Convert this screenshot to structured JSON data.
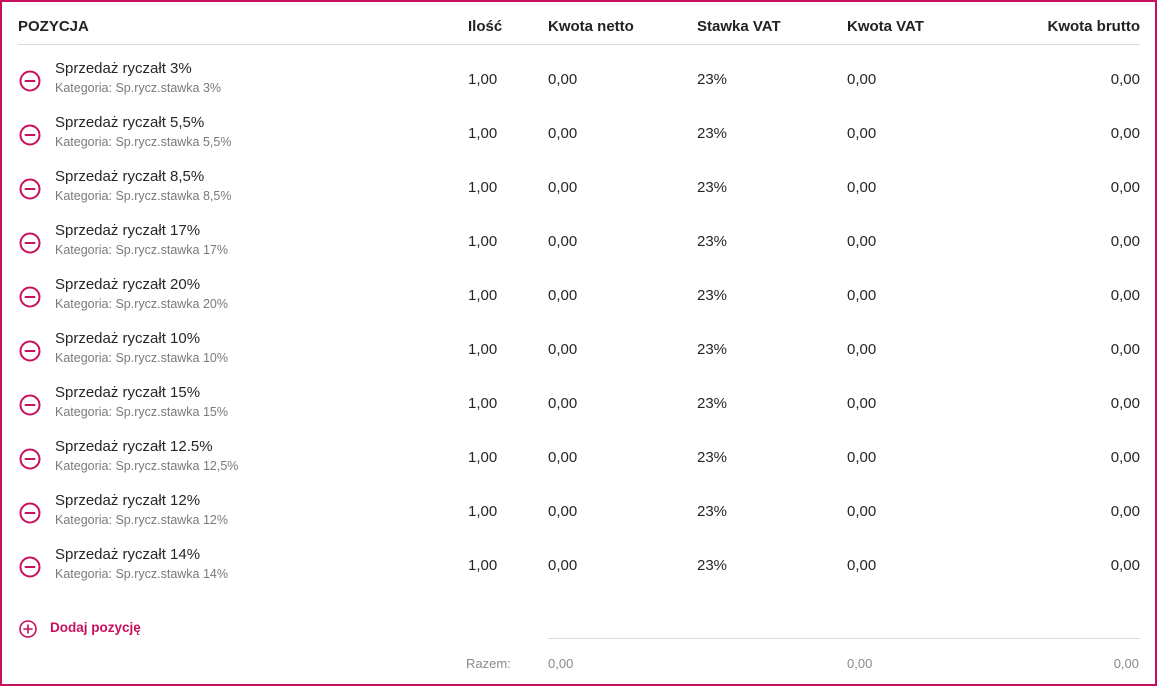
{
  "header": {
    "position": "POZYCJA",
    "qty": "Ilość",
    "net": "Kwota netto",
    "rate": "Stawka VAT",
    "vat": "Kwota VAT",
    "gross": "Kwota brutto"
  },
  "rows": [
    {
      "name": "Sprzedaż ryczałt 3%",
      "category": "Kategoria: Sp.rycz.stawka 3%",
      "qty": "1,00",
      "net": "0,00",
      "rate": "23%",
      "vat": "0,00",
      "gross": "0,00"
    },
    {
      "name": "Sprzedaż ryczałt 5,5%",
      "category": "Kategoria: Sp.rycz.stawka 5,5%",
      "qty": "1,00",
      "net": "0,00",
      "rate": "23%",
      "vat": "0,00",
      "gross": "0,00"
    },
    {
      "name": "Sprzedaż ryczałt 8,5%",
      "category": "Kategoria: Sp.rycz.stawka 8,5%",
      "qty": "1,00",
      "net": "0,00",
      "rate": "23%",
      "vat": "0,00",
      "gross": "0,00"
    },
    {
      "name": "Sprzedaż ryczałt 17%",
      "category": "Kategoria: Sp.rycz.stawka 17%",
      "qty": "1,00",
      "net": "0,00",
      "rate": "23%",
      "vat": "0,00",
      "gross": "0,00"
    },
    {
      "name": "Sprzedaż ryczałt 20%",
      "category": "Kategoria: Sp.rycz.stawka 20%",
      "qty": "1,00",
      "net": "0,00",
      "rate": "23%",
      "vat": "0,00",
      "gross": "0,00"
    },
    {
      "name": "Sprzedaż ryczałt 10%",
      "category": "Kategoria: Sp.rycz.stawka 10%",
      "qty": "1,00",
      "net": "0,00",
      "rate": "23%",
      "vat": "0,00",
      "gross": "0,00"
    },
    {
      "name": "Sprzedaż ryczałt 15%",
      "category": "Kategoria: Sp.rycz.stawka 15%",
      "qty": "1,00",
      "net": "0,00",
      "rate": "23%",
      "vat": "0,00",
      "gross": "0,00"
    },
    {
      "name": "Sprzedaż ryczałt 12.5%",
      "category": "Kategoria: Sp.rycz.stawka 12,5%",
      "qty": "1,00",
      "net": "0,00",
      "rate": "23%",
      "vat": "0,00",
      "gross": "0,00"
    },
    {
      "name": "Sprzedaż ryczałt 12%",
      "category": "Kategoria: Sp.rycz.stawka 12%",
      "qty": "1,00",
      "net": "0,00",
      "rate": "23%",
      "vat": "0,00",
      "gross": "0,00"
    },
    {
      "name": "Sprzedaż ryczałt 14%",
      "category": "Kategoria: Sp.rycz.stawka 14%",
      "qty": "1,00",
      "net": "0,00",
      "rate": "23%",
      "vat": "0,00",
      "gross": "0,00"
    }
  ],
  "add_item": {
    "label": "Dodaj pozycję",
    "icon": "plus-circle-icon"
  },
  "remove_icon": "minus-circle-icon",
  "totals": {
    "label": "Razem:",
    "net": "0,00",
    "vat": "0,00",
    "gross": "0,00"
  },
  "colors": {
    "accent": "#c8105e",
    "border": "#dcdcdc",
    "muted_text": "#7a7a7a"
  }
}
